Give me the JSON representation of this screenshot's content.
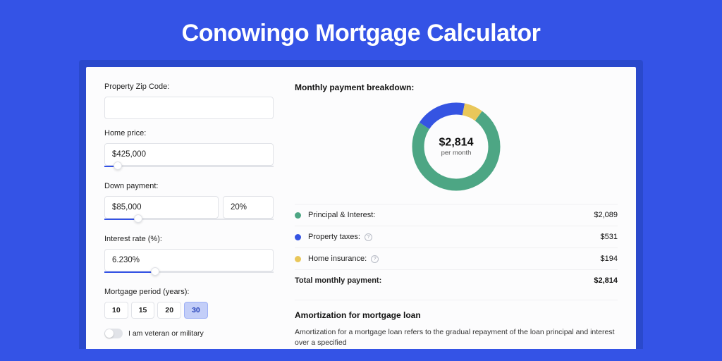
{
  "page": {
    "title": "Conowingo Mortgage Calculator",
    "bg_color": "#3453e6",
    "outer_card_color": "#2a49cc",
    "inner_card_color": "#fcfcfd"
  },
  "form": {
    "zip": {
      "label": "Property Zip Code:",
      "value": ""
    },
    "home_price": {
      "label": "Home price:",
      "value": "$425,000",
      "slider_pct": 8
    },
    "down_payment": {
      "label": "Down payment:",
      "amount": "$85,000",
      "percent": "20%",
      "slider_pct": 20
    },
    "interest_rate": {
      "label": "Interest rate (%):",
      "value": "6.230%",
      "slider_pct": 30
    },
    "mortgage_period": {
      "label": "Mortgage period (years):",
      "options": [
        "10",
        "15",
        "20",
        "30"
      ],
      "selected": "30"
    },
    "veteran": {
      "label": "I am veteran or military",
      "checked": false
    }
  },
  "breakdown": {
    "title": "Monthly payment breakdown:",
    "donut": {
      "center_amount": "$2,814",
      "center_sub": "per month",
      "stroke_width": 17,
      "radius": 54,
      "bg_color": "#ffffff",
      "slices": [
        {
          "color": "#4da684",
          "fraction": 0.742
        },
        {
          "color": "#3554e2",
          "fraction": 0.189
        },
        {
          "color": "#e9c75a",
          "fraction": 0.069
        }
      ]
    },
    "items": [
      {
        "label": "Principal & Interest:",
        "color": "#4da684",
        "amount": "$2,089",
        "info": false
      },
      {
        "label": "Property taxes:",
        "color": "#3554e2",
        "amount": "$531",
        "info": true
      },
      {
        "label": "Home insurance:",
        "color": "#e9c75a",
        "amount": "$194",
        "info": true
      }
    ],
    "total": {
      "label": "Total monthly payment:",
      "amount": "$2,814"
    }
  },
  "amortization": {
    "title": "Amortization for mortgage loan",
    "text": "Amortization for a mortgage loan refers to the gradual repayment of the loan principal and interest over a specified"
  }
}
